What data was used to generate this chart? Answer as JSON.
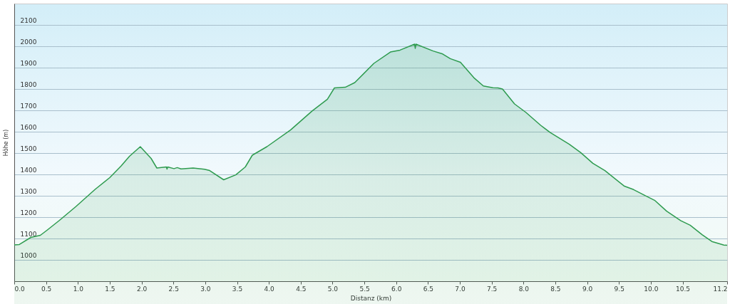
{
  "chart_data": {
    "type": "area",
    "xlabel": "Distanz  (km)",
    "ylabel": "Höhe (m)",
    "xlim": [
      0,
      11.2
    ],
    "ylim": [
      900,
      2200
    ],
    "xticks": [
      {
        "value": 0,
        "label": "0.0"
      },
      0.5,
      {
        "value": 1,
        "label": "1.0"
      },
      1.5,
      {
        "value": 2,
        "label": "2.0"
      },
      2.5,
      {
        "value": 3,
        "label": "3.0"
      },
      3.5,
      {
        "value": 4,
        "label": "4.0"
      },
      4.5,
      {
        "value": 5,
        "label": "5.0"
      },
      5.5,
      {
        "value": 6,
        "label": "6.0"
      },
      6.5,
      {
        "value": 7,
        "label": "7.0"
      },
      7.5,
      {
        "value": 8,
        "label": "8.0"
      },
      8.5,
      {
        "value": 9,
        "label": "9.0"
      },
      9.5,
      {
        "value": 10,
        "label": "10.0"
      },
      10.5,
      11.2
    ],
    "yticks": [
      1000,
      1100,
      1200,
      1300,
      1400,
      1500,
      1600,
      1700,
      1800,
      1900,
      2000,
      2100
    ],
    "grid": "y",
    "marker": "none",
    "series": [
      {
        "color": "#2e9b4f",
        "x": [
          0,
          0.08,
          0.26,
          0.41,
          0.52,
          0.71,
          0.97,
          1.27,
          1.5,
          1.68,
          1.81,
          1.98,
          2.15,
          2.24,
          2.39,
          2.4,
          2.41,
          2.51,
          2.56,
          2.62,
          2.81,
          2.99,
          3.07,
          3.29,
          3.48,
          3.63,
          3.74,
          3.97,
          4.34,
          4.68,
          4.92,
          5.03,
          5.2,
          5.35,
          5.65,
          5.91,
          6.06,
          6.29,
          6.3,
          6.31,
          6.58,
          6.73,
          6.85,
          7.01,
          7.22,
          7.37,
          7.52,
          7.6,
          7.67,
          7.86,
          8.04,
          8.27,
          8.42,
          8.72,
          8.9,
          9.09,
          9.28,
          9.58,
          9.73,
          9.91,
          10.06,
          10.25,
          10.47,
          10.62,
          10.81,
          10.96,
          11.15,
          11.2
        ],
        "values": [
          1070,
          1072,
          1105,
          1115,
          1140,
          1185,
          1250,
          1330,
          1385,
          1440,
          1485,
          1530,
          1475,
          1430,
          1435,
          1425,
          1435,
          1427,
          1432,
          1426,
          1430,
          1424,
          1418,
          1375,
          1398,
          1435,
          1490,
          1530,
          1608,
          1697,
          1752,
          1805,
          1808,
          1830,
          1920,
          1973,
          1982,
          2010,
          1990,
          2010,
          1978,
          1964,
          1942,
          1925,
          1853,
          1814,
          1806,
          1805,
          1800,
          1730,
          1690,
          1630,
          1596,
          1541,
          1502,
          1452,
          1418,
          1346,
          1329,
          1301,
          1279,
          1228,
          1184,
          1162,
          1117,
          1086,
          1069,
          1068
        ]
      }
    ]
  }
}
